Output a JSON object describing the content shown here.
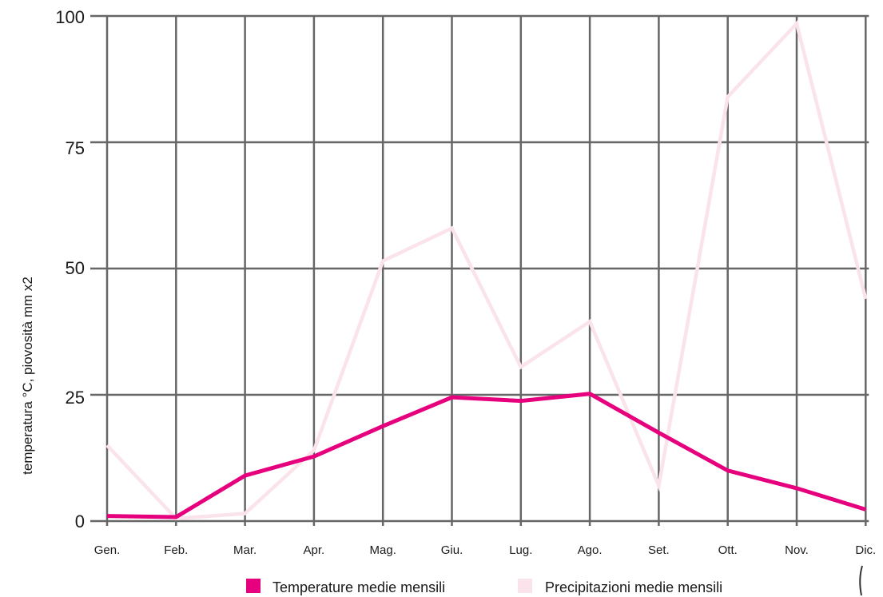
{
  "chart_data": {
    "type": "line",
    "categories": [
      "Gen.",
      "Feb.",
      "Mar.",
      "Apr.",
      "Mag.",
      "Giu.",
      "Lug.",
      "Ago.",
      "Set.",
      "Ott.",
      "Nov.",
      "Dic."
    ],
    "series": [
      {
        "name": "Temperature medie mensili",
        "color": "#e6007e",
        "values": [
          1.0,
          0.8,
          9.0,
          12.8,
          18.8,
          24.5,
          23.8,
          25.2,
          17.5,
          10.0,
          6.5,
          2.3
        ]
      },
      {
        "name": "Precipitazioni medie mensili",
        "color": "#fbe3ec",
        "values": [
          15.0,
          0.5,
          1.5,
          14.0,
          51.5,
          58.0,
          30.5,
          39.5,
          7.0,
          84.0,
          98.5,
          44.0
        ]
      }
    ],
    "yticks": [
      "0",
      "25",
      "50",
      "75",
      "100"
    ],
    "ylim": [
      0,
      100
    ],
    "ylabel": "temperatura °C, piovosità mm x2",
    "xlabel": "",
    "title": "",
    "grid": true,
    "legend_position": "bottom"
  }
}
